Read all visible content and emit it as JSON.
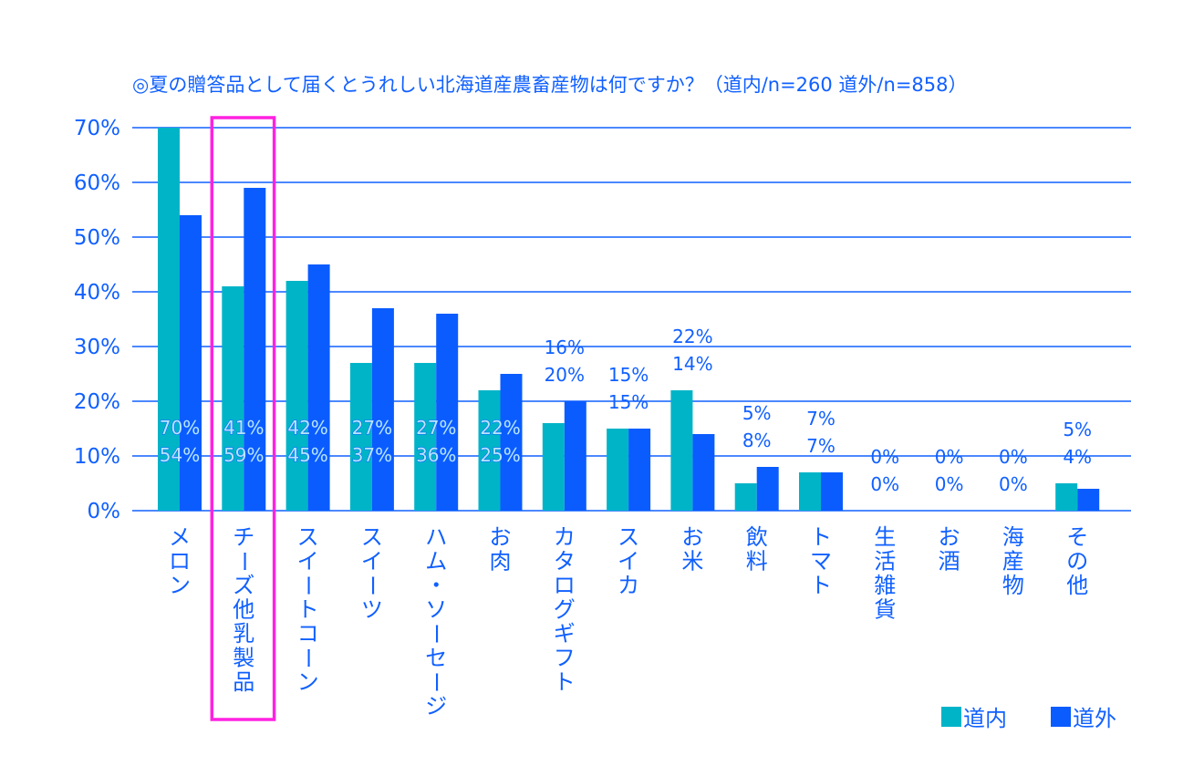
{
  "chart_data": {
    "type": "bar",
    "title": "◎夏の贈答品として届くとうれしい北海道産農畜産物は何ですか？（道内/n=260 道外/n=858）",
    "categories": [
      "メロン",
      "チーズ他乳製品",
      "スイートコーン",
      "スイーツ",
      "ハム・ソーセージ",
      "お肉",
      "カタログギフト",
      "スイカ",
      "お米",
      "飲料",
      "トマト",
      "生活雑貨",
      "お酒",
      "海産物",
      "その他"
    ],
    "series": [
      {
        "name": "道内",
        "color": "#00b4c8",
        "values": [
          70,
          41,
          42,
          27,
          27,
          22,
          16,
          15,
          22,
          5,
          7,
          0,
          0,
          0,
          5
        ],
        "labels": [
          "70%",
          "41%",
          "42%",
          "27%",
          "27%",
          "22%",
          "16%",
          "15%",
          "22%",
          "5%",
          "7%",
          "0%",
          "0%",
          "0%",
          "5%"
        ]
      },
      {
        "name": "道外",
        "color": "#0a5cff",
        "values": [
          54,
          59,
          45,
          37,
          36,
          25,
          20,
          15,
          14,
          8,
          7,
          0,
          0,
          0,
          4
        ],
        "labels": [
          "54%",
          "59%",
          "45%",
          "37%",
          "36%",
          "25%",
          "20%",
          "15%",
          "14%",
          "8%",
          "7%",
          "0%",
          "0%",
          "0%",
          "4%"
        ]
      }
    ],
    "yticks": [
      "0%",
      "10%",
      "20%",
      "30%",
      "40%",
      "50%",
      "60%",
      "70%"
    ],
    "ylim": [
      0,
      70
    ],
    "grid": true,
    "legend": "bottom-right",
    "highlight": {
      "category": "チーズ他乳製品",
      "color": "#ff22e0"
    },
    "axis_color": "#1060ff"
  }
}
